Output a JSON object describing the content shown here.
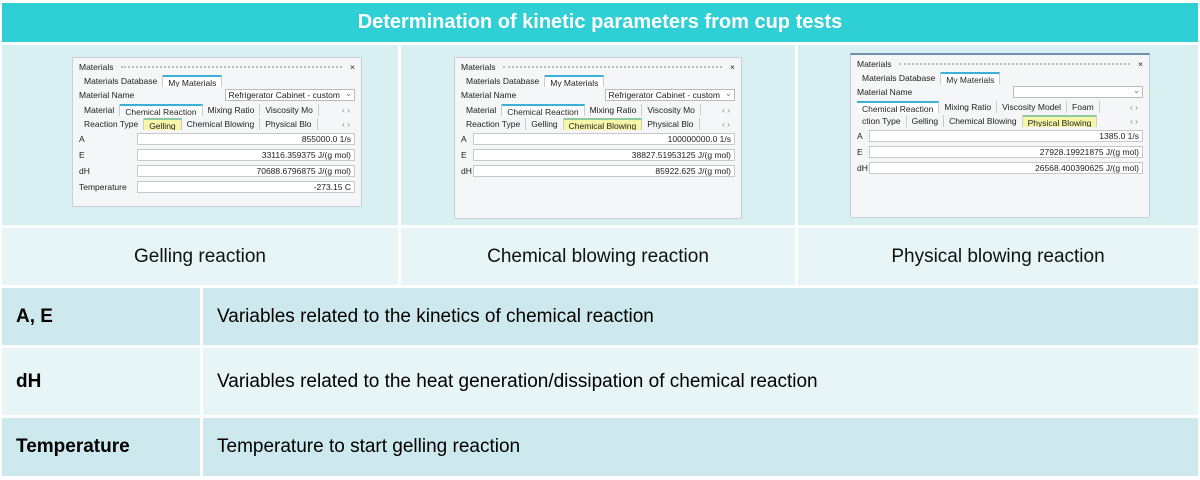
{
  "title": "Determination of kinetic parameters from cup tests",
  "panels": [
    {
      "window_title": "Materials",
      "close": "×",
      "top_tabs": [
        "Materials Database",
        "My Materials"
      ],
      "material_name_label": "Material Name",
      "material_name_value": "Refrigerator Cabinet - custom",
      "tabs": [
        "Material",
        "Chemical Reaction",
        "Mixing Ratio",
        "Viscosity Mo"
      ],
      "sub_tabs": [
        "Reaction Type",
        "Gelling",
        "Chemical Blowing",
        "Physical Blo"
      ],
      "active_sub": "Gelling",
      "fields": [
        {
          "name": "A",
          "value": "855000.0 1/s"
        },
        {
          "name": "E",
          "value": "33116.359375 J/(g mol)"
        },
        {
          "name": "dH",
          "value": "70688.6796875 J/(g mol)"
        },
        {
          "name": "Temperature",
          "value": "-273.15 C"
        }
      ],
      "caption": "Gelling  reaction"
    },
    {
      "window_title": "Materials",
      "close": "×",
      "top_tabs": [
        "Materials Database",
        "My Materials"
      ],
      "material_name_label": "Material Name",
      "material_name_value": "Refrigerator Cabinet - custom",
      "tabs": [
        "Material",
        "Chemical Reaction",
        "Mixing Ratio",
        "Viscosity Mo"
      ],
      "sub_tabs": [
        "Reaction Type",
        "Gelling",
        "Chemical Blowing",
        "Physical Blo"
      ],
      "active_sub": "Chemical Blowing",
      "fields": [
        {
          "name": "A",
          "value": "100000000.0 1/s"
        },
        {
          "name": "E",
          "value": "38827.51953125 J/(g mol)"
        },
        {
          "name": "dH",
          "value": "85922.625 J/(g mol)"
        }
      ],
      "caption": "Chemical blowing  reaction"
    },
    {
      "window_title": "Materials",
      "close": "×",
      "top_tabs": [
        "Materials Database",
        "My Materials"
      ],
      "material_name_label": "Material Name",
      "material_name_value": "",
      "tabs": [
        "Chemical Reaction",
        "Mixing Ratio",
        "Viscosity Model",
        "Foam"
      ],
      "sub_tabs": [
        "ction Type",
        "Gelling",
        "Chemical Blowing",
        "Physical Blowing"
      ],
      "active_sub": "Physical Blowing",
      "fields": [
        {
          "name": "A",
          "value": "1385.0 1/s"
        },
        {
          "name": "E",
          "value": "27928.19921875 J/(g mol)"
        },
        {
          "name": "dH",
          "value": "26568.400390625 J/(g mol)"
        }
      ],
      "caption": "Physical blowing  reaction"
    }
  ],
  "rows": [
    {
      "key": "A, E",
      "desc": "Variables related to the kinetics of chemical reaction"
    },
    {
      "key": "dH",
      "desc": "Variables related to the heat generation/dissipation of chemical reaction"
    },
    {
      "key": "Temperature",
      "desc": "Temperature to start gelling reaction"
    }
  ],
  "colors": {
    "header": "#2ecfd5",
    "highlight_tab": "#f8f6a8",
    "active_tab_accent": "#3bb0d8"
  }
}
